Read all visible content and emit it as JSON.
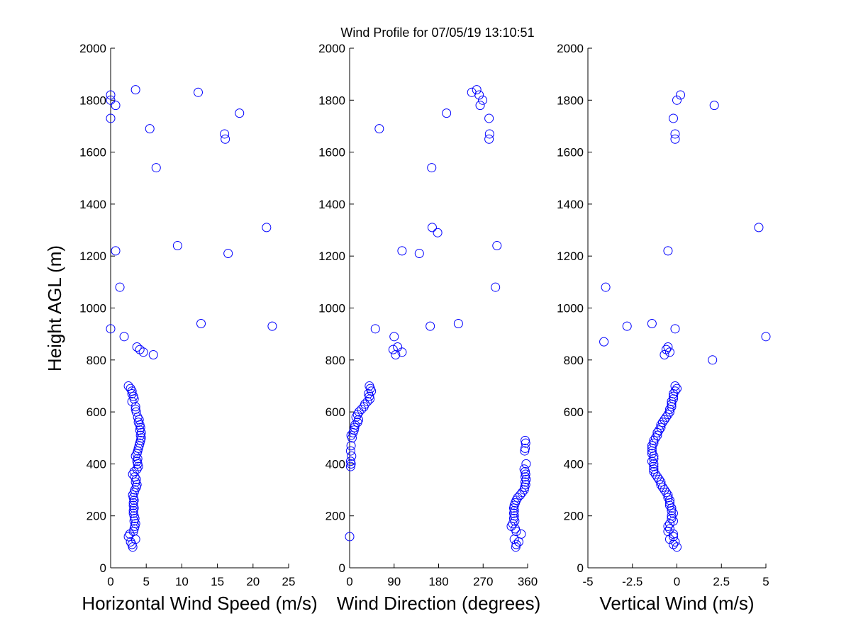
{
  "figure": {
    "title": "Wind Profile for  07/05/19 13:10:51",
    "ylabel": "Height AGL (m)"
  },
  "chart_data": [
    {
      "type": "scatter",
      "xlabel": "Horizontal Wind Speed (m/s)",
      "ylabel": "Height AGL (m)",
      "xlim": [
        0,
        25
      ],
      "ylim": [
        0,
        2000
      ],
      "xticks": [
        0,
        5,
        10,
        15,
        20,
        25
      ],
      "xtick_labels": [
        "0",
        "5",
        "10",
        "15",
        "20",
        "25"
      ],
      "yticks": [
        0,
        200,
        400,
        600,
        800,
        1000,
        1200,
        1400,
        1600,
        1800,
        2000
      ],
      "grid": false,
      "marker": "circle-open",
      "color": "#0000ff",
      "points": [
        [
          2.5,
          700
        ],
        [
          2.8,
          690
        ],
        [
          3.0,
          680
        ],
        [
          3.0,
          670
        ],
        [
          3.2,
          660
        ],
        [
          3.3,
          650
        ],
        [
          3.0,
          640
        ],
        [
          3.5,
          620
        ],
        [
          3.5,
          610
        ],
        [
          3.6,
          600
        ],
        [
          3.8,
          580
        ],
        [
          4.0,
          570
        ],
        [
          3.9,
          560
        ],
        [
          4.1,
          550
        ],
        [
          4.2,
          540
        ],
        [
          4.1,
          530
        ],
        [
          4.3,
          520
        ],
        [
          4.2,
          510
        ],
        [
          4.3,
          500
        ],
        [
          4.2,
          490
        ],
        [
          4.1,
          480
        ],
        [
          4.0,
          470
        ],
        [
          3.9,
          460
        ],
        [
          3.8,
          450
        ],
        [
          3.7,
          440
        ],
        [
          3.5,
          430
        ],
        [
          3.8,
          420
        ],
        [
          3.7,
          410
        ],
        [
          3.8,
          400
        ],
        [
          3.9,
          390
        ],
        [
          3.7,
          380
        ],
        [
          3.3,
          370
        ],
        [
          3.1,
          360
        ],
        [
          3.4,
          350
        ],
        [
          3.6,
          340
        ],
        [
          3.5,
          330
        ],
        [
          3.7,
          320
        ],
        [
          3.6,
          310
        ],
        [
          3.4,
          300
        ],
        [
          3.3,
          290
        ],
        [
          3.1,
          280
        ],
        [
          3.2,
          270
        ],
        [
          3.3,
          260
        ],
        [
          3.2,
          250
        ],
        [
          3.2,
          240
        ],
        [
          3.3,
          230
        ],
        [
          3.2,
          220
        ],
        [
          3.2,
          210
        ],
        [
          3.3,
          200
        ],
        [
          3.4,
          190
        ],
        [
          3.3,
          180
        ],
        [
          3.5,
          170
        ],
        [
          3.4,
          160
        ],
        [
          3.3,
          150
        ],
        [
          3.2,
          140
        ],
        [
          2.7,
          130
        ],
        [
          2.5,
          120
        ],
        [
          3.5,
          110
        ],
        [
          2.8,
          100
        ],
        [
          3.0,
          90
        ],
        [
          3.1,
          80
        ],
        [
          0.0,
          920
        ],
        [
          1.9,
          890
        ],
        [
          3.7,
          850
        ],
        [
          4.1,
          840
        ],
        [
          4.6,
          830
        ],
        [
          6.0,
          820
        ],
        [
          12.7,
          940
        ],
        [
          22.7,
          930
        ],
        [
          1.3,
          1080
        ],
        [
          0.7,
          1220
        ],
        [
          9.4,
          1240
        ],
        [
          16.5,
          1210
        ],
        [
          21.9,
          1310
        ],
        [
          6.4,
          1540
        ],
        [
          16.1,
          1650
        ],
        [
          16.0,
          1670
        ],
        [
          5.5,
          1690
        ],
        [
          18.1,
          1750
        ],
        [
          0.0,
          1730
        ],
        [
          0.7,
          1780
        ],
        [
          0.0,
          1800
        ],
        [
          0.0,
          1820
        ],
        [
          3.5,
          1840
        ],
        [
          12.3,
          1830
        ]
      ]
    },
    {
      "type": "scatter",
      "xlabel": "Wind Direction (degrees)",
      "ylabel": "",
      "xlim": [
        0,
        360
      ],
      "ylim": [
        0,
        2000
      ],
      "xticks": [
        0,
        90,
        180,
        270,
        360
      ],
      "xtick_labels": [
        "0",
        "90",
        "180",
        "270",
        "360"
      ],
      "yticks": [
        0,
        200,
        400,
        600,
        800,
        1000,
        1200,
        1400,
        1600,
        1800,
        2000
      ],
      "grid": false,
      "marker": "circle-open",
      "color": "#0000ff",
      "points": [
        [
          40,
          700
        ],
        [
          42,
          690
        ],
        [
          44,
          680
        ],
        [
          38,
          670
        ],
        [
          40,
          660
        ],
        [
          41,
          650
        ],
        [
          36,
          640
        ],
        [
          31,
          630
        ],
        [
          29,
          620
        ],
        [
          24,
          610
        ],
        [
          19,
          600
        ],
        [
          16,
          590
        ],
        [
          13,
          580
        ],
        [
          18,
          570
        ],
        [
          16,
          560
        ],
        [
          11,
          550
        ],
        [
          10,
          540
        ],
        [
          9,
          530
        ],
        [
          7,
          520
        ],
        [
          3,
          510
        ],
        [
          5,
          500
        ],
        [
          3,
          470
        ],
        [
          2,
          450
        ],
        [
          4,
          430
        ],
        [
          2,
          410
        ],
        [
          3,
          400
        ],
        [
          2,
          390
        ],
        [
          355,
          490
        ],
        [
          356,
          480
        ],
        [
          355,
          460
        ],
        [
          354,
          450
        ],
        [
          357,
          400
        ],
        [
          353,
          380
        ],
        [
          355,
          370
        ],
        [
          356,
          360
        ],
        [
          355,
          350
        ],
        [
          357,
          340
        ],
        [
          355,
          330
        ],
        [
          356,
          320
        ],
        [
          354,
          310
        ],
        [
          353,
          300
        ],
        [
          349,
          290
        ],
        [
          345,
          280
        ],
        [
          340,
          270
        ],
        [
          337,
          260
        ],
        [
          335,
          250
        ],
        [
          333,
          240
        ],
        [
          332,
          230
        ],
        [
          333,
          220
        ],
        [
          332,
          210
        ],
        [
          333,
          200
        ],
        [
          332,
          190
        ],
        [
          334,
          180
        ],
        [
          330,
          170
        ],
        [
          327,
          160
        ],
        [
          335,
          150
        ],
        [
          337,
          140
        ],
        [
          347,
          130
        ],
        [
          333,
          110
        ],
        [
          342,
          100
        ],
        [
          337,
          90
        ],
        [
          336,
          80
        ],
        [
          0,
          120
        ],
        [
          52,
          920
        ],
        [
          90,
          890
        ],
        [
          88,
          840
        ],
        [
          93,
          820
        ],
        [
          97,
          850
        ],
        [
          106,
          830
        ],
        [
          163,
          930
        ],
        [
          220,
          940
        ],
        [
          295,
          1080
        ],
        [
          106,
          1220
        ],
        [
          141,
          1210
        ],
        [
          167,
          1310
        ],
        [
          178,
          1290
        ],
        [
          298,
          1240
        ],
        [
          166,
          1540
        ],
        [
          282,
          1650
        ],
        [
          283,
          1670
        ],
        [
          60,
          1690
        ],
        [
          196,
          1750
        ],
        [
          282,
          1730
        ],
        [
          264,
          1780
        ],
        [
          269,
          1800
        ],
        [
          247,
          1830
        ],
        [
          257,
          1840
        ],
        [
          262,
          1820
        ]
      ]
    },
    {
      "type": "scatter",
      "xlabel": "Vertical Wind (m/s)",
      "ylabel": "",
      "xlim": [
        -5,
        5
      ],
      "ylim": [
        0,
        2000
      ],
      "xticks": [
        -5,
        -2.5,
        0,
        2.5,
        5
      ],
      "xtick_labels": [
        "-5",
        "-2.5",
        "0",
        "2.5",
        "5"
      ],
      "yticks": [
        0,
        200,
        400,
        600,
        800,
        1000,
        1200,
        1400,
        1600,
        1800,
        2000
      ],
      "grid": false,
      "marker": "circle-open",
      "color": "#0000ff",
      "points": [
        [
          -0.1,
          700
        ],
        [
          0.0,
          690
        ],
        [
          -0.1,
          680
        ],
        [
          -0.2,
          670
        ],
        [
          -0.2,
          660
        ],
        [
          -0.2,
          650
        ],
        [
          -0.3,
          640
        ],
        [
          -0.3,
          630
        ],
        [
          -0.3,
          620
        ],
        [
          -0.4,
          610
        ],
        [
          -0.4,
          600
        ],
        [
          -0.5,
          590
        ],
        [
          -0.6,
          580
        ],
        [
          -0.7,
          570
        ],
        [
          -0.8,
          560
        ],
        [
          -0.9,
          550
        ],
        [
          -0.9,
          540
        ],
        [
          -1.0,
          530
        ],
        [
          -1.1,
          520
        ],
        [
          -1.1,
          510
        ],
        [
          -1.2,
          500
        ],
        [
          -1.3,
          490
        ],
        [
          -1.3,
          480
        ],
        [
          -1.4,
          470
        ],
        [
          -1.4,
          460
        ],
        [
          -1.4,
          450
        ],
        [
          -1.4,
          440
        ],
        [
          -1.3,
          430
        ],
        [
          -1.3,
          420
        ],
        [
          -1.4,
          410
        ],
        [
          -1.3,
          400
        ],
        [
          -1.3,
          390
        ],
        [
          -1.3,
          380
        ],
        [
          -1.3,
          370
        ],
        [
          -1.2,
          360
        ],
        [
          -1.1,
          350
        ],
        [
          -1.0,
          340
        ],
        [
          -0.9,
          330
        ],
        [
          -0.9,
          320
        ],
        [
          -0.8,
          310
        ],
        [
          -0.7,
          300
        ],
        [
          -0.6,
          290
        ],
        [
          -0.5,
          280
        ],
        [
          -0.5,
          270
        ],
        [
          -0.4,
          260
        ],
        [
          -0.4,
          250
        ],
        [
          -0.4,
          240
        ],
        [
          -0.3,
          230
        ],
        [
          -0.3,
          220
        ],
        [
          -0.2,
          210
        ],
        [
          -0.3,
          200
        ],
        [
          -0.3,
          190
        ],
        [
          -0.2,
          180
        ],
        [
          -0.4,
          170
        ],
        [
          -0.5,
          160
        ],
        [
          -0.4,
          150
        ],
        [
          -0.5,
          140
        ],
        [
          -0.2,
          130
        ],
        [
          -0.2,
          120
        ],
        [
          -0.4,
          110
        ],
        [
          -0.1,
          100
        ],
        [
          -0.2,
          90
        ],
        [
          0.0,
          80
        ],
        [
          -4.1,
          870
        ],
        [
          -2.8,
          930
        ],
        [
          -1.4,
          940
        ],
        [
          -0.1,
          920
        ],
        [
          2.0,
          800
        ],
        [
          5.0,
          890
        ],
        [
          -4.0,
          1080
        ],
        [
          -0.5,
          1220
        ],
        [
          4.6,
          1310
        ],
        [
          -0.7,
          820
        ],
        [
          -0.6,
          840
        ],
        [
          -0.5,
          850
        ],
        [
          -0.4,
          830
        ],
        [
          -0.1,
          1650
        ],
        [
          -0.1,
          1670
        ],
        [
          -0.2,
          1730
        ],
        [
          2.1,
          1780
        ],
        [
          0.0,
          1800
        ],
        [
          0.2,
          1820
        ]
      ]
    }
  ]
}
